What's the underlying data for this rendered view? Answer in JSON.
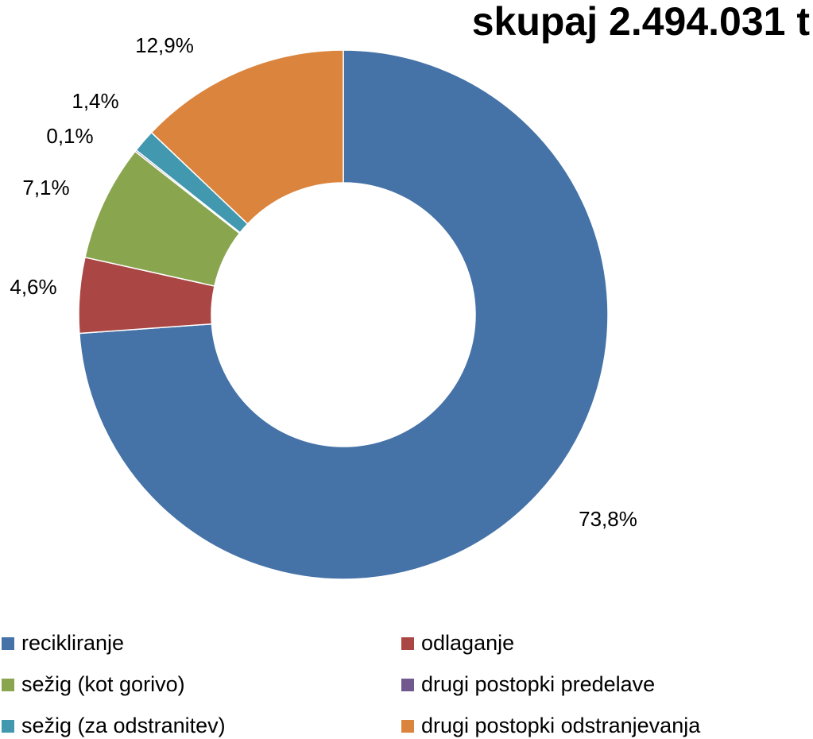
{
  "chart_data": {
    "type": "donut",
    "title": "skupaj 2.494.031 t",
    "series": [
      {
        "name": "recikliranje",
        "value": 73.8,
        "label": "73,8%",
        "color": "#4572A7"
      },
      {
        "name": "odlaganje",
        "value": 4.6,
        "label": "4,6%",
        "color": "#AA4643"
      },
      {
        "name": "sežig (kot gorivo)",
        "value": 7.1,
        "label": "7,1%",
        "color": "#89A54E"
      },
      {
        "name": "drugi postopki predelave",
        "value": 0.1,
        "label": "0,1%",
        "color": "#71588F"
      },
      {
        "name": "sežig (za odstranitev)",
        "value": 1.4,
        "label": "1,4%",
        "color": "#4198AF"
      },
      {
        "name": "drugi postopki odstranjevanja",
        "value": 12.9,
        "label": "12,9%",
        "color": "#DB843D"
      }
    ],
    "legend_position": "bottom"
  }
}
